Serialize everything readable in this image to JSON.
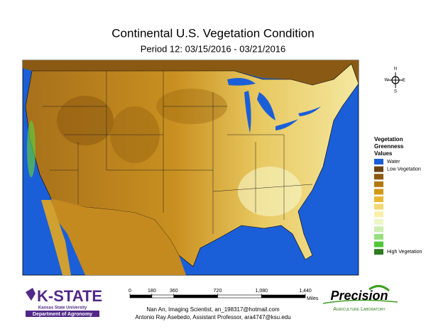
{
  "title": "Continental U.S. Vegetation Condition",
  "subtitle": "Period 12: 03/15/2016 - 03/21/2016",
  "compass": {
    "n": "N",
    "e": "E",
    "s": "S",
    "w": "W"
  },
  "legend": {
    "title": [
      "Vegetation",
      "Greenness",
      "Values"
    ],
    "items": [
      {
        "label": "Water",
        "color": "#1a5fd8"
      },
      {
        "label": "Low Vegetation",
        "color": "#6b4414"
      },
      {
        "label": null,
        "color": "#8c5a10"
      },
      {
        "label": null,
        "color": "#b07810"
      },
      {
        "label": null,
        "color": "#d09818"
      },
      {
        "label": null,
        "color": "#e8b830"
      },
      {
        "label": null,
        "color": "#f2d870"
      },
      {
        "label": null,
        "color": "#fbf0a8"
      },
      {
        "label": null,
        "color": "#eef6c8"
      },
      {
        "label": null,
        "color": "#cdeeb0"
      },
      {
        "label": null,
        "color": "#98e080"
      },
      {
        "label": null,
        "color": "#50c838"
      },
      {
        "label": "High Vegetation",
        "color": "#2e7a1e"
      }
    ]
  },
  "scale": {
    "ticks": [
      0,
      180,
      360,
      720,
      {
        "value": 1080,
        "label": "1,080"
      },
      {
        "value": 1440,
        "label": "1,440"
      }
    ],
    "unit": "Miles"
  },
  "credits": [
    "Nan An, Imaging Scientist, an_198317@hotmail.com",
    "Antonio Ray Asebedo, Assistant Professor, ara4747@ksu.edu"
  ],
  "logos": {
    "kstate": {
      "name": "K-STATE",
      "university": "Kansas State University",
      "department": "Department of Agronomy"
    },
    "precision": {
      "name": "Precision",
      "lab": "Agriculture Laboratory"
    }
  }
}
